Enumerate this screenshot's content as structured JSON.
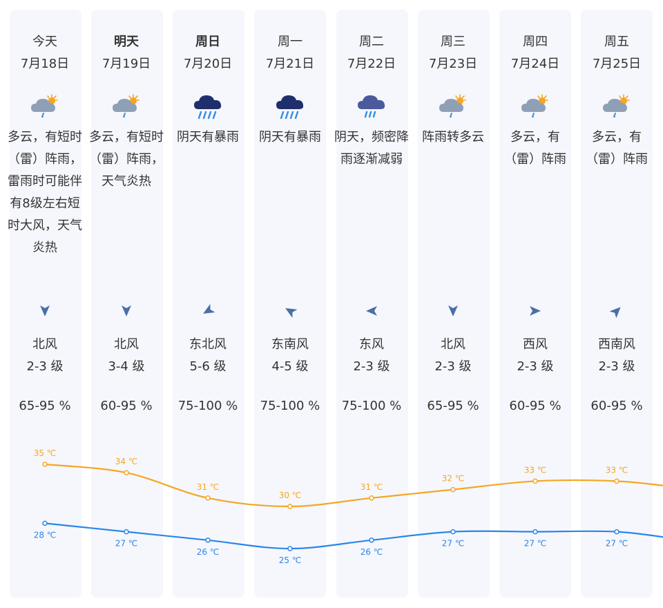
{
  "days": [
    {
      "name": "今天",
      "date": "7月18日",
      "bold": false,
      "icon": "partly-cloudy-thunder-rain-icon",
      "desc": "多云，有短时（雷）阵雨，雷雨时可能伴有8级左右短时大风，天气炎热",
      "wind_dir": "北风",
      "wind_level": "2-3 级",
      "humidity": "65-95 %",
      "high": "35 ℃",
      "low": "28 ℃"
    },
    {
      "name": "明天",
      "date": "7月19日",
      "bold": true,
      "icon": "partly-cloudy-thunder-rain-icon",
      "desc": "多云，有短时（雷）阵雨，天气炎热",
      "wind_dir": "北风",
      "wind_level": "3-4 级",
      "humidity": "60-95 %",
      "high": "34 ℃",
      "low": "27 ℃"
    },
    {
      "name": "周日",
      "date": "7月20日",
      "bold": true,
      "icon": "heavy-rain-icon",
      "desc": "阴天有暴雨",
      "wind_dir": "东北风",
      "wind_level": "5-6 级",
      "humidity": "75-100 %",
      "high": "31 ℃",
      "low": "26 ℃"
    },
    {
      "name": "周一",
      "date": "7月21日",
      "bold": false,
      "icon": "heavy-rain-icon",
      "desc": "阴天有暴雨",
      "wind_dir": "东南风",
      "wind_level": "4-5 级",
      "humidity": "75-100 %",
      "high": "30 ℃",
      "low": "25 ℃"
    },
    {
      "name": "周二",
      "date": "7月22日",
      "bold": false,
      "icon": "rain-icon",
      "desc": "阴天，频密降雨逐渐减弱",
      "wind_dir": "东风",
      "wind_level": "2-3 级",
      "humidity": "75-100 %",
      "high": "31 ℃",
      "low": "26 ℃"
    },
    {
      "name": "周三",
      "date": "7月23日",
      "bold": false,
      "icon": "partly-cloudy-thunder-rain-icon",
      "desc": "阵雨转多云",
      "wind_dir": "北风",
      "wind_level": "2-3 级",
      "humidity": "65-95 %",
      "high": "32 ℃",
      "low": "27 ℃"
    },
    {
      "name": "周四",
      "date": "7月24日",
      "bold": false,
      "icon": "partly-cloudy-thunder-rain-icon",
      "desc": "多云，有（雷）阵雨",
      "wind_dir": "西风",
      "wind_level": "2-3 级",
      "humidity": "60-95 %",
      "high": "33 ℃",
      "low": "27 ℃"
    },
    {
      "name": "周五",
      "date": "7月25日",
      "bold": false,
      "icon": "partly-cloudy-thunder-rain-icon",
      "desc": "多云，有（雷）阵雨",
      "wind_dir": "西南风",
      "wind_level": "2-3 级",
      "humidity": "60-95 %",
      "high": "33 ℃",
      "low": "27 ℃"
    }
  ],
  "temps": {
    "high_values": [
      35,
      34,
      31,
      30,
      31,
      32,
      33,
      33
    ],
    "low_values": [
      28,
      27,
      26,
      25,
      26,
      27,
      27,
      27
    ]
  },
  "colors": {
    "high": "#f5a623",
    "low": "#2a85e8",
    "arrow": "#4a6fa5",
    "card": "#f5f7fc"
  }
}
